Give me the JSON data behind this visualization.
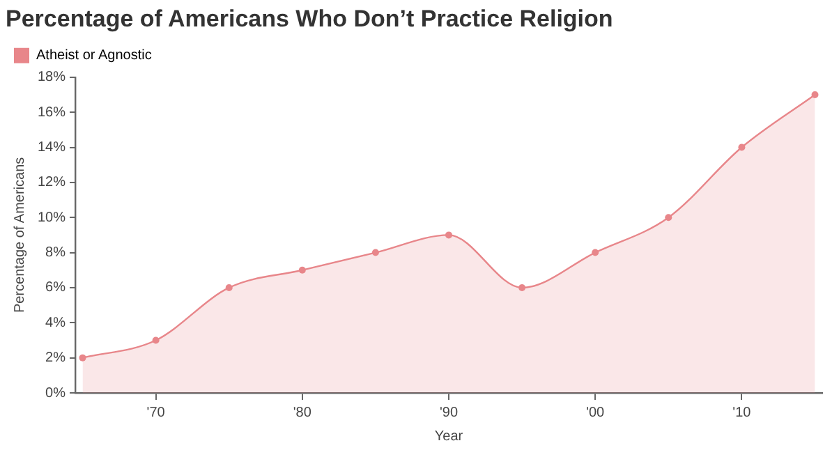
{
  "chart_data": {
    "type": "area",
    "title": "Percentage of Americans Who Don’t Practice Religion",
    "xlabel": "Year",
    "ylabel": "Percentage of Americans",
    "x": [
      1965,
      1970,
      1975,
      1980,
      1985,
      1990,
      1995,
      2000,
      2005,
      2010,
      2015
    ],
    "series": [
      {
        "name": "Atheist or Agnostic",
        "color": "#e8868a",
        "values": [
          2,
          3,
          6,
          7,
          8,
          9,
          6,
          8,
          10,
          14,
          17
        ]
      }
    ],
    "xlim": [
      1964.5,
      2015.5
    ],
    "xticks": [
      {
        "value": 1970,
        "label": "'70"
      },
      {
        "value": 1980,
        "label": "'80"
      },
      {
        "value": 1990,
        "label": "'90"
      },
      {
        "value": 2000,
        "label": "'00"
      },
      {
        "value": 2010,
        "label": "'10"
      }
    ],
    "ylim": [
      0,
      18
    ],
    "yticks": [
      {
        "value": 0,
        "label": "0%"
      },
      {
        "value": 2,
        "label": "2%"
      },
      {
        "value": 4,
        "label": "4%"
      },
      {
        "value": 6,
        "label": "6%"
      },
      {
        "value": 8,
        "label": "8%"
      },
      {
        "value": 10,
        "label": "10%"
      },
      {
        "value": 12,
        "label": "12%"
      },
      {
        "value": 14,
        "label": "14%"
      },
      {
        "value": 16,
        "label": "16%"
      },
      {
        "value": 18,
        "label": "18%"
      }
    ],
    "grid": false,
    "legend": "top left",
    "marker": "circle",
    "line_style": "solid"
  }
}
